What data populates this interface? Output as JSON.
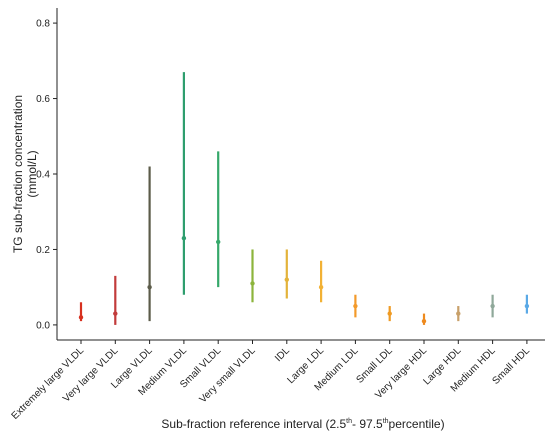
{
  "chart_data": {
    "type": "errorbar",
    "ylabel_line1": "TG sub-fraction concentration",
    "ylabel_line2": "(mmol/L)",
    "xlabel": {
      "part1": "Sub-fraction reference interval (2.5",
      "sup1": "th",
      "part2": "- 97.5",
      "sup2": "th",
      "part3": "percentile)"
    },
    "ylim": [
      -0.04,
      0.84
    ],
    "yticks": [
      "0.0",
      "0.2",
      "0.4",
      "0.6",
      "0.8"
    ],
    "ytick_values": [
      0.0,
      0.2,
      0.4,
      0.6,
      0.8
    ],
    "grid": false,
    "categories": [
      "Extremely large VLDL",
      "Very large VLDL",
      "Large VLDL",
      "Medium VLDL",
      "Small VLDL",
      "Very small VLDL",
      "IDL",
      "Large LDL",
      "Medium LDL",
      "Small LDL",
      "Very large HDL",
      "Large HDL",
      "Medium HDL",
      "Small HDL"
    ],
    "median": [
      0.02,
      0.03,
      0.1,
      0.23,
      0.22,
      0.11,
      0.12,
      0.1,
      0.05,
      0.03,
      0.01,
      0.03,
      0.05,
      0.05
    ],
    "lower": [
      0.01,
      0.0,
      0.01,
      0.08,
      0.1,
      0.06,
      0.07,
      0.06,
      0.02,
      0.01,
      0.0,
      0.01,
      0.02,
      0.03
    ],
    "upper": [
      0.06,
      0.13,
      0.42,
      0.67,
      0.46,
      0.2,
      0.2,
      0.17,
      0.08,
      0.05,
      0.03,
      0.05,
      0.08,
      0.08
    ],
    "colors": [
      "#d7301f",
      "#c23b3b",
      "#5c5c4a",
      "#2e9e6e",
      "#35a86a",
      "#8cb43c",
      "#e3b33a",
      "#f2b134",
      "#f39a2a",
      "#ef9a22",
      "#ee8a1e",
      "#c8a06a",
      "#8fa89a",
      "#5aa9e6"
    ]
  }
}
